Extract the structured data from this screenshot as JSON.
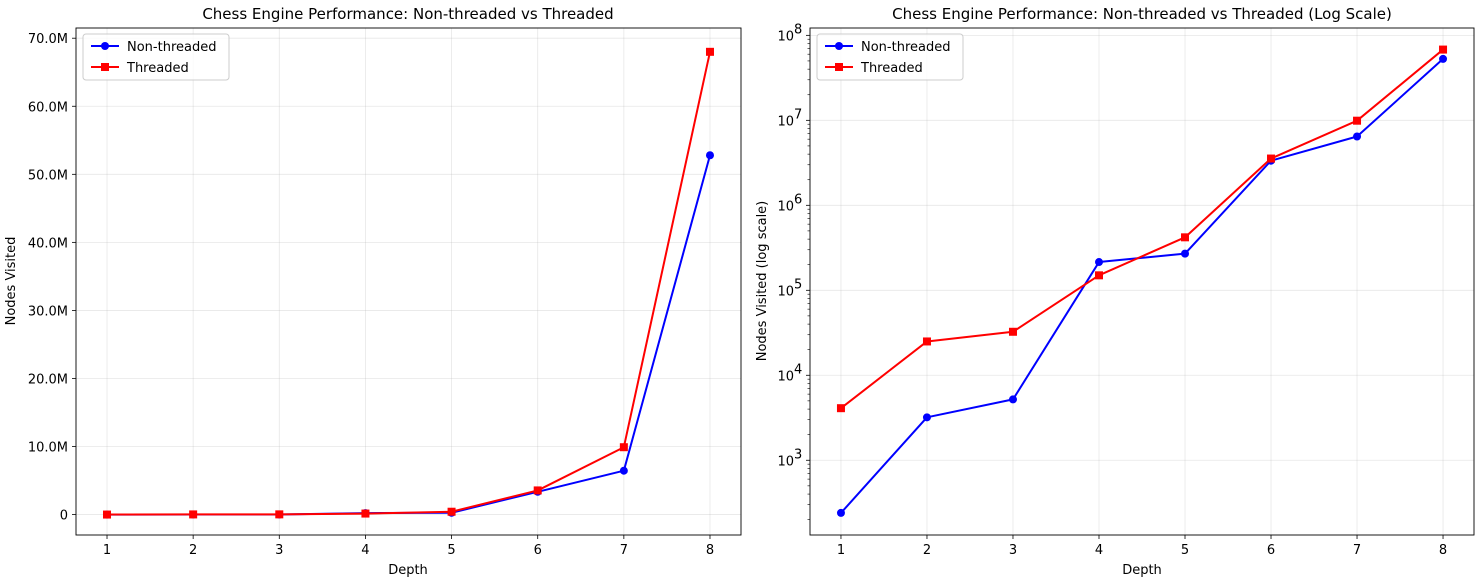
{
  "chart_data": [
    {
      "type": "line",
      "title": "Chess Engine Performance: Non-threaded vs Threaded",
      "xlabel": "Depth",
      "ylabel": "Nodes Visited",
      "x": [
        1,
        2,
        3,
        4,
        5,
        6,
        7,
        8
      ],
      "xlim": [
        0.64,
        8.36
      ],
      "ylim": [
        -3000000,
        71500000
      ],
      "yscale": "linear",
      "yticks": [
        0,
        10000000,
        20000000,
        30000000,
        40000000,
        50000000,
        60000000,
        70000000
      ],
      "ytick_labels": [
        "0",
        "10.0M",
        "20.0M",
        "30.0M",
        "40.0M",
        "50.0M",
        "60.0M",
        "70.0M"
      ],
      "grid": true,
      "legend": "top-left",
      "series": [
        {
          "name": "Non-threaded",
          "marker": "circle",
          "color": "#0000ff",
          "values": [
            240,
            3200,
            5200,
            215000,
            270000,
            3350000,
            6450000,
            52800000
          ]
        },
        {
          "name": "Threaded",
          "marker": "square",
          "color": "#ff0000",
          "values": [
            4100,
            25000,
            32500,
            150000,
            420000,
            3550000,
            9900000,
            68000000
          ]
        }
      ]
    },
    {
      "type": "line",
      "title": "Chess Engine Performance: Non-threaded vs Threaded (Log Scale)",
      "xlabel": "Depth",
      "ylabel": "Nodes Visited (log scale)",
      "x": [
        1,
        2,
        3,
        4,
        5,
        6,
        7,
        8
      ],
      "xlim": [
        0.64,
        8.36
      ],
      "ylim": [
        132,
        122000000
      ],
      "yscale": "log",
      "yticks": [
        1000,
        10000,
        100000,
        1000000,
        10000000,
        100000000
      ],
      "ytick_labels": [
        {
          "base": "10",
          "exp": "3"
        },
        {
          "base": "10",
          "exp": "4"
        },
        {
          "base": "10",
          "exp": "5"
        },
        {
          "base": "10",
          "exp": "6"
        },
        {
          "base": "10",
          "exp": "7"
        },
        {
          "base": "10",
          "exp": "8"
        }
      ],
      "grid": true,
      "legend": "top-left",
      "series": [
        {
          "name": "Non-threaded",
          "marker": "circle",
          "color": "#0000ff",
          "values": [
            240,
            3200,
            5200,
            215000,
            270000,
            3350000,
            6450000,
            52800000
          ]
        },
        {
          "name": "Threaded",
          "marker": "square",
          "color": "#ff0000",
          "values": [
            4100,
            25000,
            32500,
            150000,
            420000,
            3550000,
            9900000,
            68000000
          ]
        }
      ]
    }
  ]
}
